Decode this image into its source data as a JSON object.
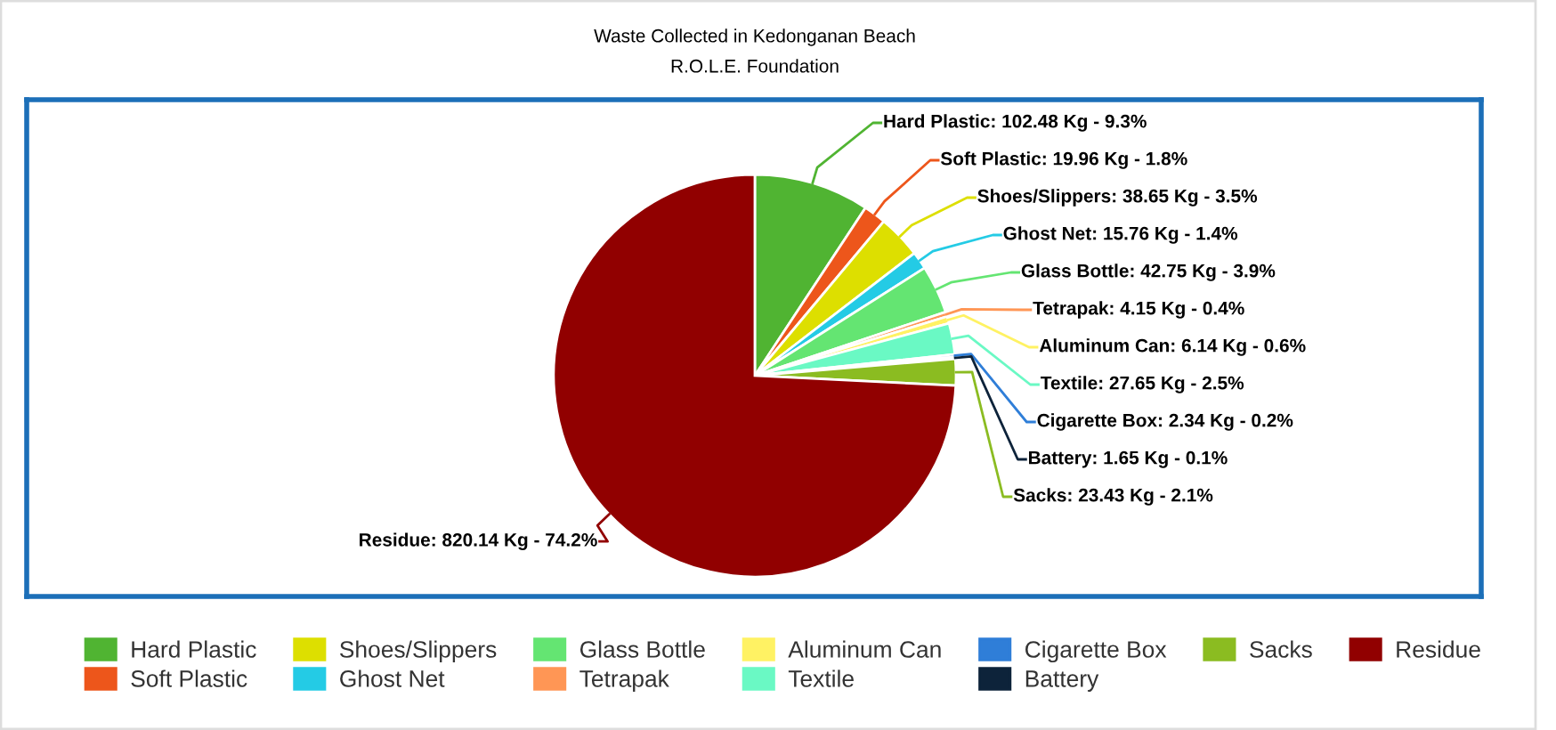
{
  "chart_data": {
    "type": "pie",
    "title": "Waste Collected in Kedonganan Beach",
    "subtitle": "R.O.L.E. Foundation",
    "categories": [
      "Hard Plastic",
      "Soft Plastic",
      "Shoes/Slippers",
      "Ghost Net",
      "Glass Bottle",
      "Tetrapak",
      "Aluminum Can",
      "Textile",
      "Cigarette Box",
      "Battery",
      "Sacks",
      "Residue"
    ],
    "values": [
      102.48,
      19.96,
      38.65,
      15.76,
      42.75,
      4.15,
      6.14,
      27.65,
      2.34,
      1.65,
      23.43,
      820.14
    ],
    "colors": [
      "#50b432",
      "#ed561b",
      "#dddf00",
      "#24cbe5",
      "#64e572",
      "#ff9655",
      "#fff263",
      "#6af9c4",
      "#2f7ed8",
      "#0d233a",
      "#8bbc21",
      "#910000"
    ],
    "value_labels": [
      "Hard Plastic: 102.48 Kg - 9.3%",
      "Soft Plastic: 19.96 Kg - 1.8%",
      "Shoes/Slippers: 38.65 Kg - 3.5%",
      "Ghost Net: 15.76 Kg - 1.4%",
      "Glass Bottle: 42.75 Kg - 3.9%",
      "Tetrapak: 4.15 Kg - 0.4%",
      "Aluminum Can: 6.14 Kg - 0.6%",
      "Textile: 27.65 Kg - 2.5%",
      "Cigarette Box: 2.34 Kg - 0.2%",
      "Battery: 1.65 Kg - 0.1%",
      "Sacks: 23.43 Kg - 2.1%",
      "Residue: 820.14 Kg - 74.2%"
    ],
    "legend": "bottom"
  }
}
